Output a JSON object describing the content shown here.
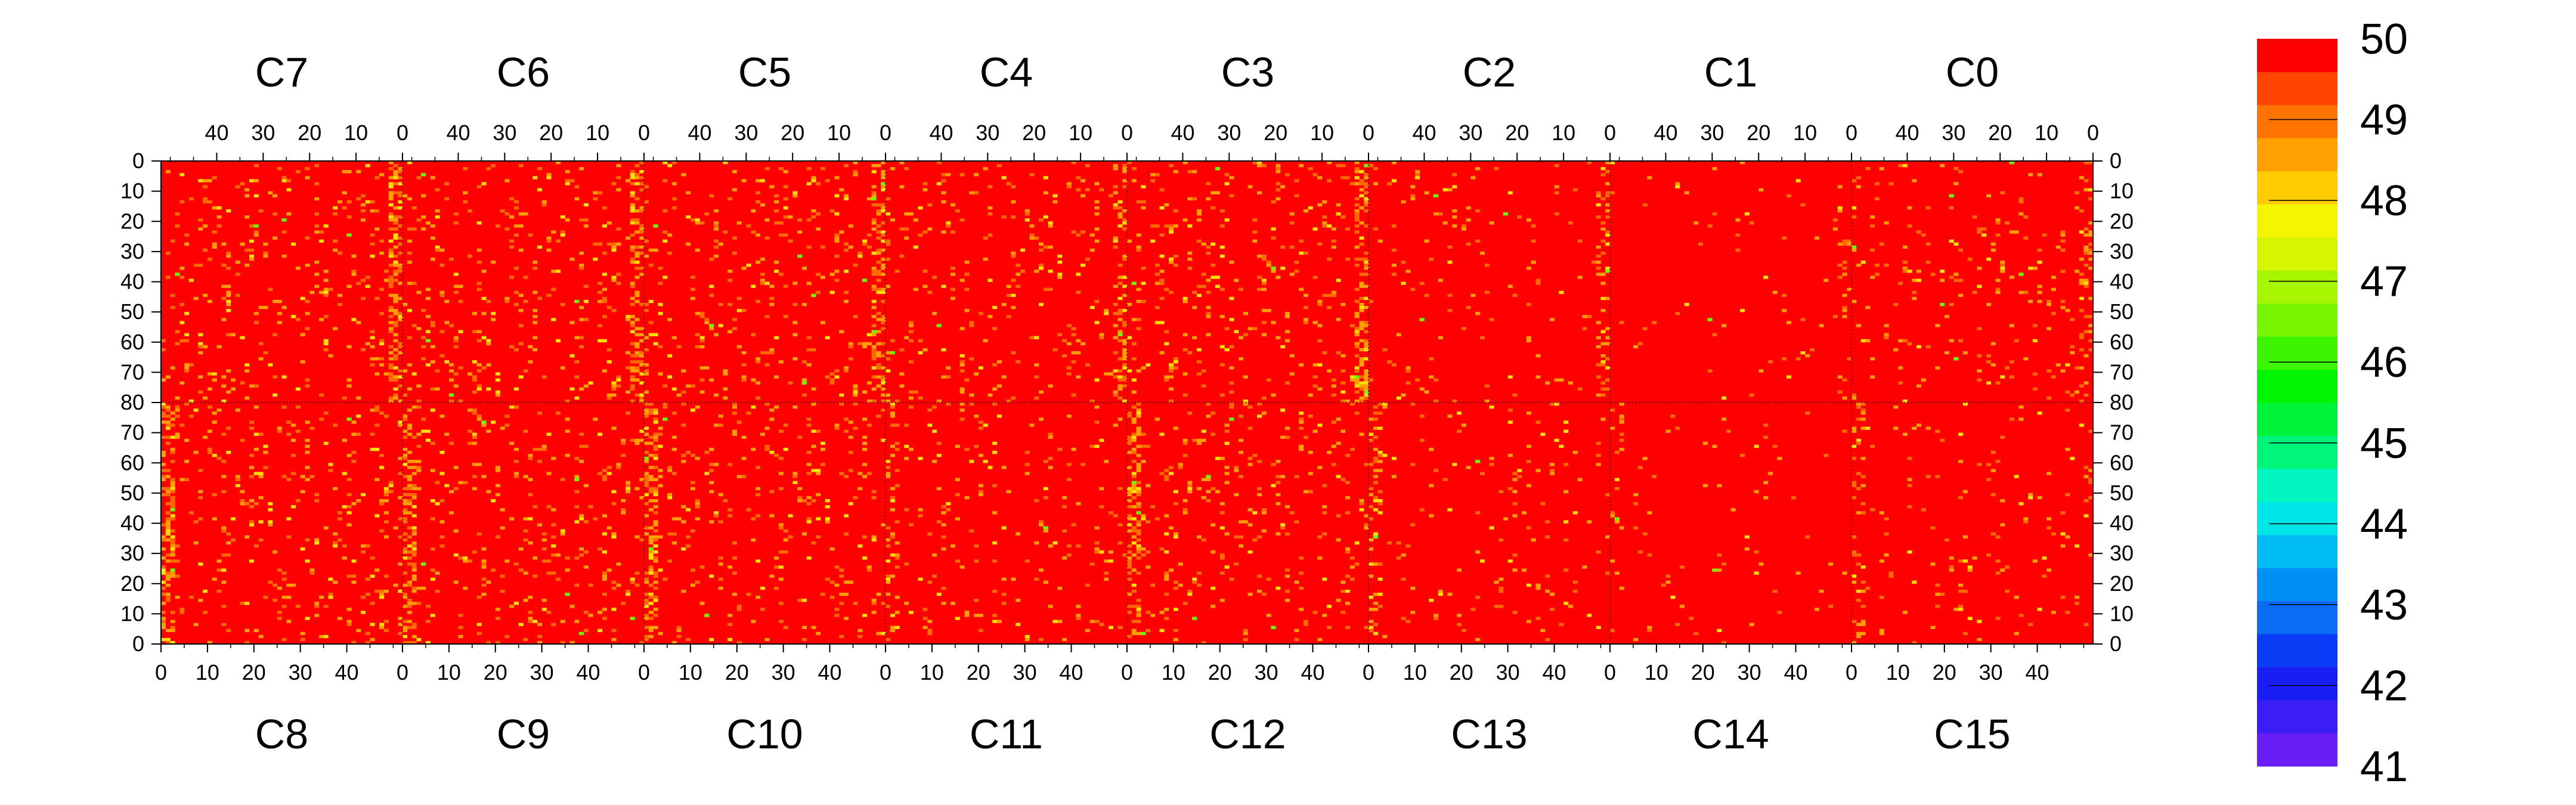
{
  "chart_data": {
    "type": "heatmap",
    "top_chip_labels": [
      "C7",
      "C6",
      "C5",
      "C4",
      "C3",
      "C2",
      "C1",
      "C0"
    ],
    "bottom_chip_labels": [
      "C8",
      "C9",
      "C10",
      "C11",
      "C12",
      "C13",
      "C14",
      "C15"
    ],
    "top_axis_ticks": [
      "40",
      "30",
      "20",
      "10",
      "0"
    ],
    "bottom_axis_ticks": [
      "0",
      "10",
      "20",
      "30",
      "40"
    ],
    "left_axis_ticks": [
      "0",
      "10",
      "20",
      "30",
      "40",
      "50",
      "60",
      "70",
      "80",
      "70",
      "60",
      "50",
      "40",
      "30",
      "20",
      "10",
      "0"
    ],
    "right_axis_ticks": [
      "0",
      "10",
      "20",
      "30",
      "40",
      "50",
      "60",
      "70",
      "80",
      "70",
      "60",
      "50",
      "40",
      "30",
      "20",
      "10",
      "0"
    ],
    "columns_per_chip": 52,
    "rows_per_half": 80,
    "zlim": [
      41,
      50
    ],
    "colorbar_labels": [
      "50",
      "49",
      "48",
      "47",
      "46",
      "45",
      "44",
      "43",
      "42",
      "41"
    ],
    "colorbar_colors": [
      "#6a1ef5",
      "#3a1ef5",
      "#1a1ef5",
      "#0a3cf5",
      "#0a6cf5",
      "#0090f5",
      "#00bcf5",
      "#00e6e6",
      "#00f5c0",
      "#00f57a",
      "#00f53a",
      "#00f500",
      "#3cf500",
      "#7af500",
      "#a8f500",
      "#d8f500",
      "#f5f500",
      "#ffcc00",
      "#ffa000",
      "#ff7400",
      "#ff4400",
      "#ff0000"
    ],
    "background_value": 50,
    "cell_colors": {
      "base": "#ff0000",
      "warm": "#ff6a00",
      "orange": "#ffa000",
      "yellow": "#ffe000",
      "green": "#66ff00"
    },
    "noise_density_per_chip": {
      "C7": 0.07,
      "C6": 0.065,
      "C5": 0.065,
      "C4": 0.06,
      "C3": 0.065,
      "C2": 0.03,
      "C1": 0.015,
      "C0": 0.04,
      "C8": 0.07,
      "C9": 0.065,
      "C10": 0.07,
      "C11": 0.04,
      "C12": 0.065,
      "C13": 0.03,
      "C14": 0.015,
      "C15": 0.035
    },
    "hot_edge_columns": "columns near chip boundaries (col 0 side) show frequent orange/yellow cells"
  }
}
